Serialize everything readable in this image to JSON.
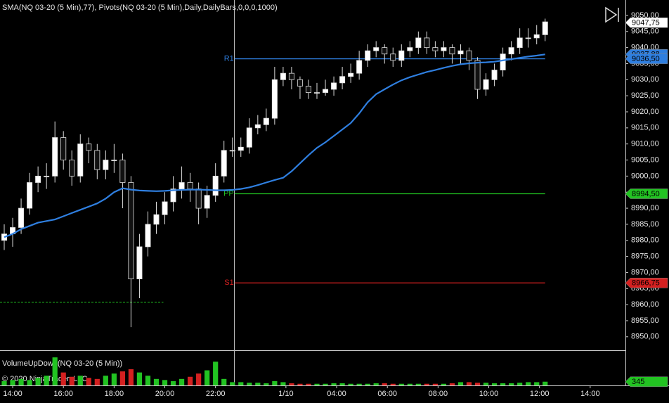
{
  "chart_data": {
    "type": "candlestick",
    "title": "SMA(NQ 03-20 (5 Min),77), Pivots(NQ 03-20 (5 Min),Daily,DailyBars,0,0,0,1000)",
    "x": [
      -1,
      0,
      1,
      2,
      3,
      4,
      5,
      6,
      7,
      8,
      9,
      10,
      11,
      12,
      13,
      14,
      15,
      16,
      17,
      18,
      19,
      20,
      21,
      22,
      23,
      24,
      25,
      26,
      27,
      28,
      29,
      30,
      31,
      32,
      33,
      34,
      35,
      36,
      37,
      38,
      39,
      40,
      41,
      42,
      43,
      44,
      45,
      46,
      47,
      48,
      49,
      50,
      51,
      52,
      53,
      54,
      55,
      56,
      57,
      58,
      59,
      60,
      61,
      62,
      63
    ],
    "open": [
      8980,
      8982,
      8984,
      8990,
      8998,
      9000,
      9000,
      9012,
      9005,
      9000,
      9010,
      9008,
      9002,
      9005,
      9005,
      8998,
      8968,
      8978,
      8985,
      8988,
      8992,
      8996,
      8998,
      8996,
      8990,
      8994,
      9000,
      9008,
      9008,
      9009,
      9015,
      9016,
      9018,
      9030,
      9032,
      9030,
      9028,
      9026,
      9026,
      9027,
      9029,
      9031,
      9032,
      9036,
      9039,
      9040,
      9038,
      9036,
      9039,
      9040,
      9043,
      9040,
      9039,
      9040,
      9038,
      9039,
      9036,
      9027,
      9030,
      9033,
      9038,
      9040,
      9043,
      9043,
      9044
    ],
    "high": [
      8985,
      8987,
      8993,
      9001,
      9003,
      9004,
      9017,
      9014,
      9008,
      9013,
      9012,
      9010,
      9008,
      9010,
      9007,
      9000,
      8982,
      8989,
      8992,
      8995,
      9000,
      9003,
      9001,
      8998,
      8997,
      9004,
      9011,
      9012,
      9012,
      9018,
      9019,
      9021,
      9034,
      9034,
      9034,
      9031,
      9030,
      9029,
      9030,
      9031,
      9034,
      9035,
      9039,
      9041,
      9042,
      9041,
      9040,
      9041,
      9042,
      9045,
      9045,
      9042,
      9042,
      9041,
      9041,
      9040,
      9037,
      9032,
      9035,
      9040,
      9042,
      9046,
      9046,
      9047,
      9049
    ],
    "low": [
      8977,
      8978,
      8982,
      8988,
      8995,
      8996,
      8998,
      9002,
      8997,
      8998,
      9004,
      8999,
      8999,
      9001,
      8990,
      8953,
      8962,
      8975,
      8982,
      8985,
      8989,
      8993,
      8992,
      8985,
      8987,
      8992,
      8998,
      9006,
      9006,
      9007,
      9013,
      9014,
      9016,
      9028,
      9027,
      9024,
      9024,
      9024,
      9025,
      9025,
      9027,
      9029,
      9030,
      9034,
      9037,
      9035,
      9034,
      9034,
      9037,
      9038,
      9038,
      9037,
      9037,
      9035,
      9035,
      9033,
      9024,
      9025,
      9028,
      9031,
      9036,
      9038,
      9040,
      9041,
      9042
    ],
    "close": [
      8982,
      8984,
      8990,
      8998,
      9000,
      9000,
      9012,
      9005,
      9000,
      9010,
      9008,
      9002,
      9005,
      9005,
      8998,
      8968,
      8978,
      8985,
      8988,
      8992,
      8996,
      8998,
      8996,
      8990,
      8994,
      9000,
      9008,
      9008,
      9009,
      9015,
      9016,
      9018,
      9030,
      9032,
      9030,
      9028,
      9026,
      9026,
      9027,
      9029,
      9031,
      9032,
      9036,
      9039,
      9040,
      9038,
      9036,
      9039,
      9040,
      9043,
      9040,
      9039,
      9040,
      9038,
      9039,
      9036,
      9027,
      9030,
      9033,
      9038,
      9040,
      9043,
      9043,
      9044,
      9048
    ],
    "up_color": "#ffffff",
    "down_color": "#111111",
    "sma": {
      "color": "#2f7fe0",
      "values": [
        8981,
        8982,
        8983.5,
        8984.5,
        8985.5,
        8986,
        8986.5,
        8987.5,
        8988.5,
        8989.5,
        8990.5,
        8991.5,
        8993,
        8995,
        8996.2,
        8995.8,
        8995.5,
        8995.4,
        8995.3,
        8995.4,
        8995.6,
        8995.7,
        8995.8,
        8995.8,
        8995.7,
        8995.6,
        8995.6,
        8995.7,
        8996,
        8996.5,
        8997.2,
        8998,
        8998.8,
        8999.5,
        9001.5,
        9004,
        9006.5,
        9008.8,
        9010.5,
        9012.5,
        9014.5,
        9016.5,
        9019.5,
        9023,
        9025.5,
        9027,
        9028.5,
        9029.8,
        9030.8,
        9031.6,
        9032.4,
        9033,
        9033.7,
        9034.3,
        9034.8,
        9035.1,
        9035.3,
        9035.4,
        9035.6,
        9036,
        9036.4,
        9036.8,
        9037.2,
        9037.5,
        9037.88
      ],
      "price_label": {
        "value": 9037.88,
        "label": "9037,88"
      }
    },
    "pivots": [
      {
        "label": "R1",
        "value": 9036.5,
        "color": "#2f7fe0",
        "price_label": "9036,50"
      },
      {
        "label": "PP",
        "value": 8994.5,
        "color": "#22c322",
        "price_label": "8994,50"
      },
      {
        "label": "S1",
        "value": 8966.75,
        "color": "#d42020",
        "price_label": "8966,75"
      }
    ],
    "pivot_x_range": [
      26.25,
      63
    ],
    "dashed_level": {
      "value": 8960.75,
      "color": "#22c322",
      "x_range": [
        -1.5,
        17.83
      ]
    },
    "last_price": {
      "value": 9047.75,
      "label": "9047,75"
    },
    "xlim": [
      -1.5,
      72.5
    ],
    "ylim": [
      8945.8,
      9054.8
    ],
    "xticks": [
      {
        "value": 0,
        "label": "14:00"
      },
      {
        "value": 6,
        "label": "16:00"
      },
      {
        "value": 12,
        "label": "18:00"
      },
      {
        "value": 18,
        "label": "20:00"
      },
      {
        "value": 24,
        "label": "22:00"
      },
      {
        "value": 32.33,
        "label": "1/10"
      },
      {
        "value": 38.33,
        "label": "04:00"
      },
      {
        "value": 44.33,
        "label": "06:00"
      },
      {
        "value": 50.33,
        "label": "08:00"
      },
      {
        "value": 56.33,
        "label": "10:00"
      },
      {
        "value": 62.33,
        "label": "12:00"
      },
      {
        "value": 68.33,
        "label": "14:00"
      }
    ],
    "yticks": [
      {
        "value": 8950,
        "label": "8950,00"
      },
      {
        "value": 8955,
        "label": "8955,00"
      },
      {
        "value": 8960,
        "label": "8960,00"
      },
      {
        "value": 8965,
        "label": "8965,00"
      },
      {
        "value": 8970,
        "label": "8970,00"
      },
      {
        "value": 8975,
        "label": "8975,00"
      },
      {
        "value": 8980,
        "label": "8980,00"
      },
      {
        "value": 8985,
        "label": "8985,00"
      },
      {
        "value": 8990,
        "label": "8990,00"
      },
      {
        "value": 8995,
        "label": "8995,00"
      },
      {
        "value": 9000,
        "label": "9000,00"
      },
      {
        "value": 9005,
        "label": "9005,00"
      },
      {
        "value": 9010,
        "label": "9010,00"
      },
      {
        "value": 9015,
        "label": "9015,00"
      },
      {
        "value": 9020,
        "label": "9020,00"
      },
      {
        "value": 9025,
        "label": "9025,00"
      },
      {
        "value": 9030,
        "label": "9030,00"
      },
      {
        "value": 9035,
        "label": "9035,00"
      },
      {
        "value": 9040,
        "label": "9040,00"
      },
      {
        "value": 9045,
        "label": "9045,00"
      },
      {
        "value": 9050,
        "label": "9050,00"
      }
    ],
    "volume": {
      "title": "VolumeUpDown(NQ 03-20 (5 Min))",
      "up_color": "#22c322",
      "down_color": "#d42020",
      "values": [
        400,
        500,
        600,
        500,
        700,
        900,
        2600,
        1200,
        800,
        900,
        700,
        600,
        900,
        1100,
        1300,
        1500,
        1200,
        900,
        600,
        500,
        400,
        600,
        800,
        1100,
        1400,
        2200,
        600,
        300,
        300,
        250,
        250,
        200,
        400,
        300,
        200,
        150,
        150,
        150,
        150,
        200,
        200,
        150,
        150,
        150,
        200,
        200,
        150,
        150,
        150,
        150,
        150,
        150,
        150,
        200,
        300,
        300,
        250,
        250,
        200,
        200,
        200,
        250,
        300,
        300,
        345
      ],
      "ylim": [
        0,
        3000
      ],
      "last_label": {
        "value": 345,
        "label": "345"
      }
    },
    "copyright": "© 2020 NinjaTrader, LLC"
  }
}
